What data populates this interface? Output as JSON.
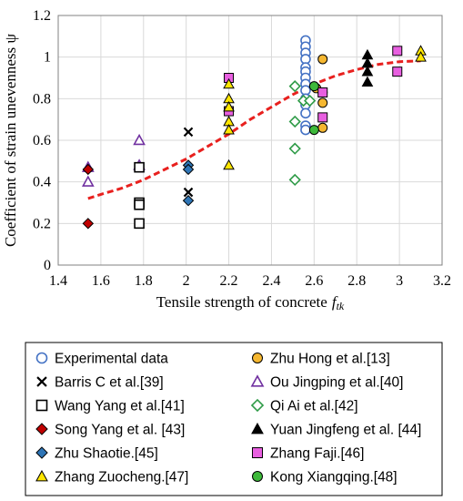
{
  "chart_data": {
    "type": "scatter",
    "title": "",
    "xlabel": "Tensile strength of concrete",
    "xlabel_symbol": "f",
    "xlabel_subscript": "tk",
    "ylabel": "Coefficient of strain unevenness ψ",
    "xlim": [
      1.4,
      3.2
    ],
    "ylim": [
      0,
      1.2
    ],
    "xticks": [
      "1.4",
      "1.6",
      "1.8",
      "2",
      "2.2",
      "2.4",
      "2.6",
      "2.8",
      "3",
      "3.2"
    ],
    "yticks": [
      "0",
      "0.2",
      "0.4",
      "0.6",
      "0.8",
      "1",
      "1.2"
    ],
    "grid": true,
    "legend_placement": "below",
    "series": [
      {
        "name": "Experimental data",
        "marker": "circle-open",
        "color": "#4472C4",
        "points": [
          [
            2.56,
            1.08
          ],
          [
            2.56,
            1.05
          ],
          [
            2.56,
            1.02
          ],
          [
            2.56,
            0.99
          ],
          [
            2.56,
            0.95
          ],
          [
            2.56,
            0.93
          ],
          [
            2.56,
            0.9
          ],
          [
            2.56,
            0.87
          ],
          [
            2.56,
            0.84
          ],
          [
            2.56,
            0.8
          ],
          [
            2.56,
            0.77
          ],
          [
            2.56,
            0.73
          ],
          [
            2.56,
            0.67
          ],
          [
            2.56,
            0.65
          ]
        ]
      },
      {
        "name": "Zhu Hong et al.[13]",
        "marker": "circle",
        "color": "#F5B731",
        "points": [
          [
            2.64,
            0.99
          ],
          [
            2.64,
            0.83
          ],
          [
            2.64,
            0.78
          ],
          [
            2.64,
            0.66
          ],
          [
            2.61,
            0.85
          ]
        ]
      },
      {
        "name": "Barris C et al.[39]",
        "marker": "x",
        "color": "#000000",
        "points": [
          [
            2.01,
            0.64
          ],
          [
            2.01,
            0.35
          ]
        ]
      },
      {
        "name": "Ou Jingping et al.[40]",
        "marker": "triangle-open",
        "color": "#7030A0",
        "points": [
          [
            1.54,
            0.47
          ],
          [
            1.54,
            0.4
          ],
          [
            1.78,
            0.6
          ],
          [
            1.78,
            0.48
          ]
        ]
      },
      {
        "name": "Wang Yang et al.[41]",
        "marker": "square-open",
        "color": "#000000",
        "points": [
          [
            1.78,
            0.47
          ],
          [
            1.78,
            0.3
          ],
          [
            1.78,
            0.29
          ],
          [
            1.78,
            0.2
          ]
        ]
      },
      {
        "name": "Qi Ai et al.[42]",
        "marker": "diamond-open",
        "color": "#2E9B47",
        "points": [
          [
            2.51,
            0.86
          ],
          [
            2.51,
            0.69
          ],
          [
            2.51,
            0.56
          ],
          [
            2.51,
            0.41
          ],
          [
            2.55,
            0.79
          ],
          [
            2.58,
            0.79
          ]
        ]
      },
      {
        "name": "Song Yang et al. [43]",
        "marker": "diamond",
        "color": "#C00000",
        "points": [
          [
            1.54,
            0.46
          ],
          [
            1.54,
            0.2
          ]
        ]
      },
      {
        "name": "Yuan Jingfeng et al. [44]",
        "marker": "triangle",
        "color": "#000000",
        "points": [
          [
            2.85,
            1.01
          ],
          [
            2.85,
            0.97
          ],
          [
            2.85,
            0.93
          ],
          [
            2.85,
            0.88
          ]
        ]
      },
      {
        "name": "Zhu Shaotie.[45]",
        "marker": "diamond",
        "color": "#2E75B6",
        "points": [
          [
            2.01,
            0.48
          ],
          [
            2.01,
            0.46
          ],
          [
            2.01,
            0.31
          ]
        ]
      },
      {
        "name": "Zhang Faji.[46]",
        "marker": "square",
        "color": "#E85FE0",
        "points": [
          [
            2.2,
            0.9
          ],
          [
            2.2,
            0.74
          ],
          [
            2.64,
            0.71
          ],
          [
            2.64,
            0.83
          ],
          [
            2.99,
            1.03
          ],
          [
            2.99,
            0.93
          ]
        ]
      },
      {
        "name": "Zhang Zuocheng.[47]",
        "marker": "triangle",
        "color": "#FFE600",
        "points": [
          [
            2.2,
            0.87
          ],
          [
            2.2,
            0.8
          ],
          [
            2.2,
            0.76
          ],
          [
            2.2,
            0.69
          ],
          [
            2.2,
            0.65
          ],
          [
            2.2,
            0.48
          ],
          [
            3.1,
            1.03
          ],
          [
            3.1,
            1.0
          ]
        ]
      },
      {
        "name": "Kong Xiangqing.[48]",
        "marker": "circle",
        "color": "#3DB83A",
        "points": [
          [
            2.6,
            0.86
          ],
          [
            2.6,
            0.65
          ]
        ]
      }
    ],
    "fit_curve": {
      "style": "dashed",
      "color": "#E8201E",
      "x": [
        1.54,
        1.6,
        1.7,
        1.8,
        1.9,
        2.0,
        2.1,
        2.2,
        2.3,
        2.4,
        2.5,
        2.6,
        2.7,
        2.8,
        2.9,
        3.0,
        3.1
      ],
      "y": [
        0.32,
        0.34,
        0.37,
        0.41,
        0.46,
        0.51,
        0.57,
        0.63,
        0.7,
        0.76,
        0.82,
        0.87,
        0.91,
        0.94,
        0.965,
        0.978,
        0.982
      ]
    }
  }
}
